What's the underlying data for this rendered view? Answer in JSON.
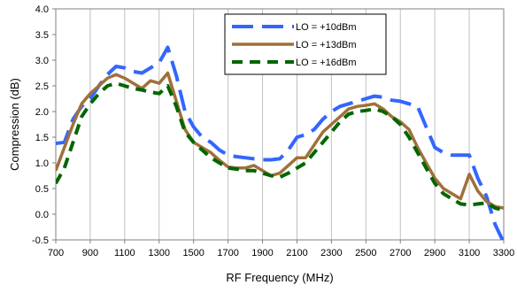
{
  "chart_data": {
    "type": "line",
    "title": "",
    "xlabel": "RF Frequency (MHz)",
    "ylabel": "Compression (dB)",
    "xlim": [
      700,
      3300
    ],
    "ylim": [
      -0.5,
      4.0
    ],
    "xticks": [
      700,
      900,
      1100,
      1300,
      1500,
      1700,
      1900,
      2100,
      2300,
      2500,
      2700,
      2900,
      3100,
      3300
    ],
    "xtick_labels": [
      "700",
      "900",
      "1100",
      "1300",
      "1500",
      "1700",
      "1900",
      "2100",
      "2300",
      "2500",
      "2700",
      "2900",
      "3100",
      "3300"
    ],
    "yticks": [
      -0.5,
      0.0,
      0.5,
      1.0,
      1.5,
      2.0,
      2.5,
      3.0,
      3.5,
      4.0
    ],
    "ytick_labels": [
      "-0.5",
      "0.0",
      "0.5",
      "1.0",
      "1.5",
      "2.0",
      "2.5",
      "3.0",
      "3.5",
      "4.0"
    ],
    "grid": "vertical",
    "legend_position": "top-center",
    "x": [
      700,
      750,
      800,
      850,
      900,
      950,
      1000,
      1050,
      1100,
      1150,
      1200,
      1250,
      1300,
      1350,
      1400,
      1450,
      1500,
      1550,
      1600,
      1650,
      1700,
      1750,
      1800,
      1850,
      1900,
      1950,
      2000,
      2050,
      2100,
      2150,
      2200,
      2250,
      2300,
      2350,
      2400,
      2450,
      2500,
      2550,
      2600,
      2650,
      2700,
      2750,
      2800,
      2850,
      2900,
      2950,
      3000,
      3050,
      3100,
      3150,
      3200,
      3250,
      3300
    ],
    "series": [
      {
        "name": "LO = +10dBm",
        "color": "#3366ff",
        "dash": "long-dash",
        "values": [
          1.38,
          1.4,
          1.85,
          2.1,
          2.25,
          2.5,
          2.72,
          2.88,
          2.85,
          2.78,
          2.75,
          2.85,
          2.95,
          3.25,
          2.7,
          2.0,
          1.7,
          1.5,
          1.4,
          1.25,
          1.15,
          1.12,
          1.1,
          1.08,
          1.06,
          1.06,
          1.08,
          1.25,
          1.5,
          1.55,
          1.65,
          1.85,
          2.0,
          2.1,
          2.15,
          2.2,
          2.25,
          2.3,
          2.28,
          2.22,
          2.2,
          2.15,
          2.1,
          1.7,
          1.3,
          1.2,
          1.15,
          1.15,
          1.15,
          0.7,
          0.35,
          -0.2,
          -0.55
        ]
      },
      {
        "name": "LO = +13dBm",
        "color": "#a0703a",
        "dash": "solid",
        "values": [
          0.85,
          1.3,
          1.75,
          2.15,
          2.35,
          2.5,
          2.65,
          2.72,
          2.65,
          2.55,
          2.45,
          2.6,
          2.55,
          2.75,
          2.2,
          1.65,
          1.4,
          1.3,
          1.2,
          1.05,
          0.92,
          0.9,
          0.9,
          0.95,
          0.85,
          0.75,
          0.8,
          0.95,
          1.1,
          1.1,
          1.35,
          1.6,
          1.75,
          1.9,
          2.05,
          2.1,
          2.12,
          2.15,
          2.05,
          1.9,
          1.8,
          1.65,
          1.3,
          1.0,
          0.7,
          0.5,
          0.4,
          0.3,
          0.78,
          0.45,
          0.25,
          0.15,
          0.12
        ]
      },
      {
        "name": "LO = +16dBm",
        "color": "#006600",
        "dash": "dash",
        "values": [
          0.6,
          0.9,
          1.4,
          1.9,
          2.15,
          2.35,
          2.5,
          2.55,
          2.5,
          2.45,
          2.42,
          2.38,
          2.35,
          2.5,
          2.1,
          1.6,
          1.4,
          1.25,
          1.1,
          1.0,
          0.9,
          0.88,
          0.85,
          0.85,
          0.8,
          0.75,
          0.72,
          0.8,
          0.9,
          1.0,
          1.2,
          1.4,
          1.6,
          1.8,
          1.95,
          2.0,
          2.02,
          2.05,
          2.0,
          1.9,
          1.75,
          1.5,
          1.2,
          0.9,
          0.6,
          0.4,
          0.3,
          0.2,
          0.18,
          0.2,
          0.22,
          0.12,
          0.08
        ]
      }
    ]
  }
}
